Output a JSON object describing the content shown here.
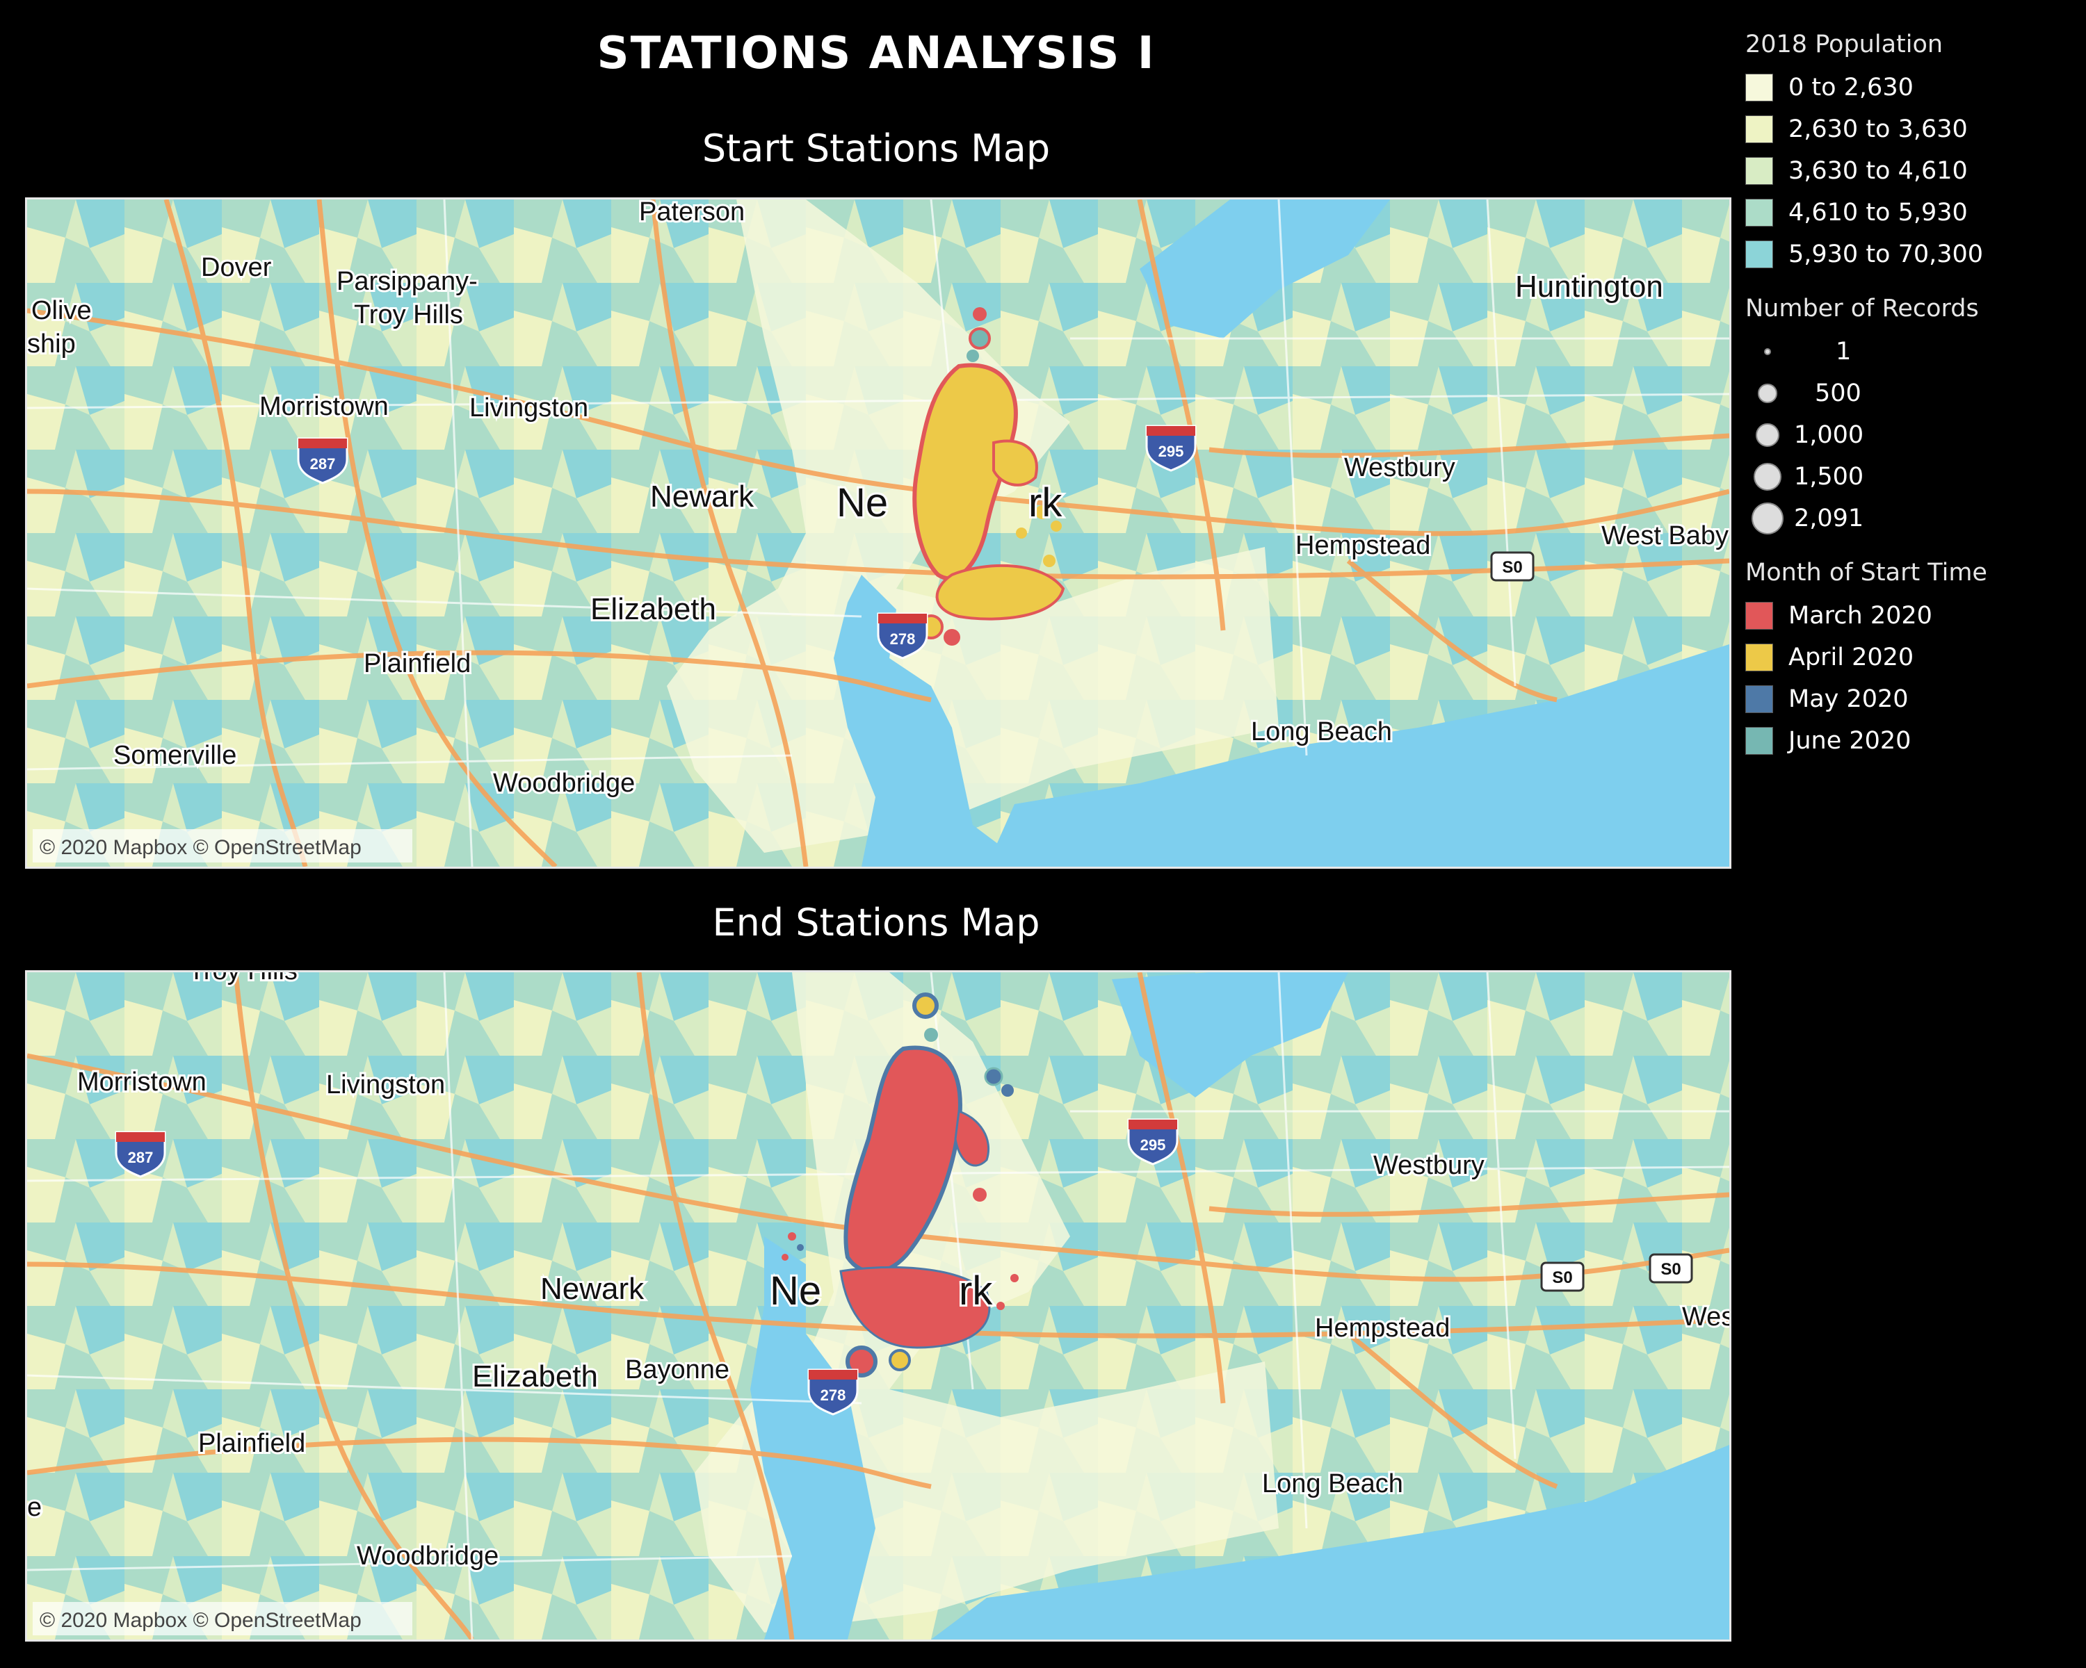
{
  "page": {
    "title": "STATIONS ANALYSIS I"
  },
  "start_map": {
    "subtitle": "Start Stations Map",
    "attribution": "© 2020 Mapbox © OpenStreetMap",
    "cities": [
      "Paterson",
      "Dover",
      "Parsippany-",
      "Troy Hills",
      "Olive",
      "ship",
      "Huntington",
      "Morristown",
      "Livingston",
      "Westbury",
      "Newark",
      "Ne",
      "rk",
      "Hempstead",
      "West Baby",
      "Elizabeth",
      "Plainfield",
      "Long Beach",
      "Somerville",
      "Woodbridge"
    ],
    "shields": [
      "287",
      "295",
      "S0",
      "278"
    ],
    "dominant_month": "April 2020"
  },
  "end_map": {
    "subtitle": "End Stations Map",
    "attribution": "© 2020 Mapbox © OpenStreetMap",
    "cities": [
      "Troy Hills",
      "Morristown",
      "Livingston",
      "Westbury",
      "Newark",
      "Ne",
      "rk",
      "Hempstead",
      "Wes",
      "Bayonne",
      "Elizabeth",
      "Plainfield",
      "e",
      "Long Beach",
      "Woodbridge"
    ],
    "shields": [
      "287",
      "295",
      "S0",
      "S0",
      "278"
    ],
    "dominant_month": "March 2020"
  },
  "legend": {
    "population": {
      "title": "2018 Population",
      "items": [
        {
          "label": "0 to 2,630",
          "color": "#f6f8dc"
        },
        {
          "label": "2,630 to 3,630",
          "color": "#eef3c4"
        },
        {
          "label": "3,630 to 4,610",
          "color": "#d8ecc4"
        },
        {
          "label": "4,610 to 5,930",
          "color": "#acdcc8"
        },
        {
          "label": "5,930 to 70,300",
          "color": "#8cd4d8"
        }
      ]
    },
    "records": {
      "title": "Number of Records",
      "items": [
        {
          "label": "1",
          "value": 1
        },
        {
          "label": "500",
          "value": 500
        },
        {
          "label": "1,000",
          "value": 1000
        },
        {
          "label": "1,500",
          "value": 1500
        },
        {
          "label": "2,091",
          "value": 2091
        }
      ]
    },
    "month": {
      "title": "Month of Start Time",
      "items": [
        {
          "label": "March 2020",
          "color": "#e15759"
        },
        {
          "label": "April 2020",
          "color": "#edc948"
        },
        {
          "label": "May 2020",
          "color": "#4e79a7"
        },
        {
          "label": "June 2020",
          "color": "#76b7b2"
        }
      ]
    }
  }
}
